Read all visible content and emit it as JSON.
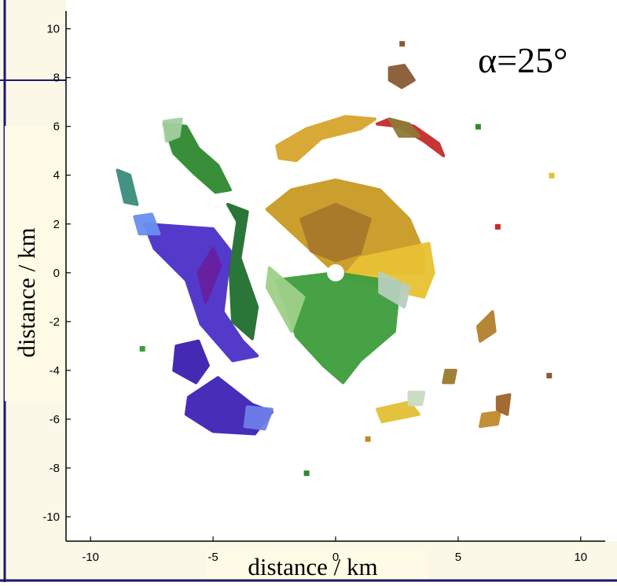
{
  "chart_data": {
    "type": "scatter",
    "title": "",
    "annotation": "α=25°",
    "xlabel": "distance / km",
    "ylabel": "distance  / km",
    "xlim": [
      -11,
      11
    ],
    "ylim": [
      -11,
      10.6
    ],
    "xticks": [
      -10,
      -5,
      0,
      5,
      10
    ],
    "yticks": [
      10,
      8,
      6,
      4,
      2,
      0,
      -2,
      -4,
      -6,
      -8,
      -10
    ],
    "xtick_labels": [
      "-10",
      "-5",
      "0",
      "5",
      "10"
    ],
    "ytick_labels": [
      "10",
      "8",
      "6",
      "4",
      "2",
      "0",
      "-2",
      "-4",
      "-6",
      "-8",
      "-10"
    ],
    "grid": false,
    "regions": [
      {
        "name": "center-ochre",
        "color": "#c99a22",
        "points": [
          [
            -2.8,
            2.6
          ],
          [
            -1.8,
            3.4
          ],
          [
            0,
            3.8
          ],
          [
            1.8,
            3.4
          ],
          [
            3,
            2.2
          ],
          [
            3.6,
            0.8
          ],
          [
            3.6,
            0
          ],
          [
            0,
            0
          ]
        ]
      },
      {
        "name": "center-yellow",
        "color": "#e8c233",
        "points": [
          [
            3.8,
            1.2
          ],
          [
            4,
            0
          ],
          [
            3.6,
            -1
          ],
          [
            0.3,
            -0.2
          ],
          [
            1,
            0.6
          ]
        ]
      },
      {
        "name": "center-brown-core",
        "color": "#a8792a",
        "points": [
          [
            -1.4,
            2.2
          ],
          [
            0,
            2.8
          ],
          [
            1.4,
            2.2
          ],
          [
            1,
            0.8
          ],
          [
            0,
            0.5
          ],
          [
            -1,
            0.9
          ]
        ]
      },
      {
        "name": "center-green-south",
        "color": "#3e9c3c",
        "points": [
          [
            -2.4,
            -0.3
          ],
          [
            0,
            0
          ],
          [
            2.6,
            -0.4
          ],
          [
            2.4,
            -2.4
          ],
          [
            1,
            -3.6
          ],
          [
            0.3,
            -4.5
          ],
          [
            -0.5,
            -3.8
          ],
          [
            -1.6,
            -2.6
          ]
        ]
      },
      {
        "name": "center-lightgreen-edge",
        "color": "#9fd08a",
        "points": [
          [
            -2.7,
            0.2
          ],
          [
            -2.8,
            -0.6
          ],
          [
            -1.8,
            -2.4
          ],
          [
            -1.3,
            -1
          ]
        ]
      },
      {
        "name": "center-pale-grey",
        "color": "#b7cfbd",
        "points": [
          [
            1.8,
            0
          ],
          [
            3,
            -0.6
          ],
          [
            2.8,
            -1.4
          ],
          [
            1.8,
            -0.8
          ]
        ]
      },
      {
        "name": "arc-gold-north",
        "color": "#d6a52c",
        "points": [
          [
            -2.4,
            5.2
          ],
          [
            -1.2,
            5.9
          ],
          [
            0.4,
            6.4
          ],
          [
            1.6,
            6.3
          ],
          [
            1,
            5.9
          ],
          [
            -0.6,
            5.5
          ],
          [
            -1.6,
            4.6
          ],
          [
            -2.3,
            4.7
          ]
        ]
      },
      {
        "name": "arc-red-north",
        "color": "#c72a2a",
        "points": [
          [
            1.7,
            6.1
          ],
          [
            2.6,
            6
          ],
          [
            3.6,
            5.4
          ],
          [
            4.4,
            4.8
          ],
          [
            4.2,
            5.3
          ],
          [
            3.2,
            6
          ],
          [
            2.2,
            6.3
          ]
        ]
      },
      {
        "name": "arc-olive-north",
        "color": "#8f7a36",
        "points": [
          [
            2.2,
            6.3
          ],
          [
            3,
            6.1
          ],
          [
            3.4,
            5.6
          ],
          [
            2.6,
            5.6
          ]
        ]
      },
      {
        "name": "brown-fleck-ne",
        "color": "#8a5a34",
        "points": [
          [
            2.2,
            8.4
          ],
          [
            2.8,
            8.5
          ],
          [
            3.2,
            7.9
          ],
          [
            2.7,
            7.6
          ],
          [
            2.2,
            7.9
          ]
        ]
      },
      {
        "name": "green-plume-nw",
        "color": "#2f8a2f",
        "points": [
          [
            -7,
            6.1
          ],
          [
            -6.1,
            6
          ],
          [
            -5.6,
            5.1
          ],
          [
            -4.8,
            4.4
          ],
          [
            -4.3,
            3.4
          ],
          [
            -4.9,
            3.3
          ],
          [
            -5.8,
            4.1
          ],
          [
            -6.6,
            4.9
          ]
        ]
      },
      {
        "name": "pale-green-nw-tip",
        "color": "#a3cfa0",
        "points": [
          [
            -7,
            6.2
          ],
          [
            -6.3,
            6.3
          ],
          [
            -6.4,
            5.6
          ],
          [
            -6.9,
            5.4
          ]
        ]
      },
      {
        "name": "teal-strip-west",
        "color": "#3c8c7e",
        "points": [
          [
            -8.9,
            4.2
          ],
          [
            -8.4,
            4
          ],
          [
            -8.1,
            2.8
          ],
          [
            -8.6,
            2.9
          ]
        ]
      },
      {
        "name": "dark-green-ridge",
        "color": "#1f6e2e",
        "points": [
          [
            -4.4,
            2.8
          ],
          [
            -4,
            2.1
          ],
          [
            -4.3,
            0
          ],
          [
            -4.2,
            -2
          ],
          [
            -3.4,
            -2.7
          ],
          [
            -3.2,
            -1.4
          ],
          [
            -3.9,
            0.6
          ],
          [
            -3.6,
            2.5
          ]
        ]
      },
      {
        "name": "blue-west-mass",
        "color": "#4a30c8",
        "points": [
          [
            -7.8,
            2
          ],
          [
            -6.4,
            1.9
          ],
          [
            -5,
            1.8
          ],
          [
            -4.3,
            0.9
          ],
          [
            -4.6,
            -1.6
          ],
          [
            -3.8,
            -2.8
          ],
          [
            -3.2,
            -3.4
          ],
          [
            -4.2,
            -3.6
          ],
          [
            -5.5,
            -2.1
          ],
          [
            -6.1,
            -0.3
          ],
          [
            -7.4,
            1
          ]
        ]
      },
      {
        "name": "light-blue-fringe",
        "color": "#6a8ff0",
        "points": [
          [
            -8.2,
            2.3
          ],
          [
            -7.5,
            2.4
          ],
          [
            -7.2,
            1.6
          ],
          [
            -8,
            1.6
          ]
        ]
      },
      {
        "name": "purple-core",
        "color": "#6a1fa0",
        "points": [
          [
            -5,
            1
          ],
          [
            -4.7,
            0.3
          ],
          [
            -5.3,
            -1.2
          ],
          [
            -5.6,
            0
          ]
        ]
      },
      {
        "name": "dark-blue-south-1",
        "color": "#3a1fae",
        "points": [
          [
            -6.5,
            -3
          ],
          [
            -5.6,
            -2.8
          ],
          [
            -5.2,
            -3.8
          ],
          [
            -5.7,
            -4.5
          ],
          [
            -6.6,
            -4
          ]
        ]
      },
      {
        "name": "dark-blue-south-2",
        "color": "#3e22b5",
        "points": [
          [
            -6,
            -5.1
          ],
          [
            -4.8,
            -4.3
          ],
          [
            -3.4,
            -5.4
          ],
          [
            -2.6,
            -5.7
          ],
          [
            -3.3,
            -6.6
          ],
          [
            -5,
            -6.5
          ],
          [
            -6.1,
            -5.8
          ]
        ]
      },
      {
        "name": "periwinkle-south-edge",
        "color": "#6f7fe8",
        "points": [
          [
            -3.6,
            -5.5
          ],
          [
            -2.6,
            -5.6
          ],
          [
            -2.9,
            -6.4
          ],
          [
            -3.7,
            -6.3
          ]
        ]
      },
      {
        "name": "ochre-east-1",
        "color": "#b1802c",
        "points": [
          [
            5.8,
            -2.2
          ],
          [
            6.4,
            -1.6
          ],
          [
            6.5,
            -2.4
          ],
          [
            5.9,
            -2.8
          ]
        ]
      },
      {
        "name": "ochre-east-2",
        "color": "#c08a2c",
        "points": [
          [
            6,
            -5.8
          ],
          [
            6.7,
            -5.7
          ],
          [
            6.6,
            -6.2
          ],
          [
            5.9,
            -6.3
          ]
        ]
      },
      {
        "name": "brown-east-3",
        "color": "#a0632a",
        "points": [
          [
            6.6,
            -5.1
          ],
          [
            7.1,
            -5
          ],
          [
            7,
            -5.8
          ],
          [
            6.6,
            -5.6
          ]
        ]
      },
      {
        "name": "yellow-south-east",
        "color": "#e2c033",
        "points": [
          [
            1.7,
            -5.6
          ],
          [
            3,
            -5.3
          ],
          [
            3.4,
            -5.8
          ],
          [
            1.9,
            -6.1
          ]
        ]
      },
      {
        "name": "olive-small-east",
        "color": "#9a7a2e",
        "points": [
          [
            4.5,
            -4
          ],
          [
            4.9,
            -4
          ],
          [
            4.8,
            -4.5
          ],
          [
            4.4,
            -4.5
          ]
        ]
      },
      {
        "name": "pale-blob-south",
        "color": "#c8dcc0",
        "points": [
          [
            3,
            -4.9
          ],
          [
            3.6,
            -4.9
          ],
          [
            3.5,
            -5.4
          ],
          [
            3,
            -5.4
          ]
        ]
      }
    ],
    "flecks": [
      {
        "name": "fleck-gold-east-north",
        "color": "#e2c033",
        "x": 8.8,
        "y": 4
      },
      {
        "name": "fleck-red-east",
        "color": "#c72a2a",
        "x": 6.6,
        "y": 1.9
      },
      {
        "name": "fleck-brown-east",
        "color": "#8a5a34",
        "x": 8.7,
        "y": -4.2
      },
      {
        "name": "fleck-green-south",
        "color": "#2f8a2f",
        "x": -1.2,
        "y": -8.2
      },
      {
        "name": "fleck-green-northeast",
        "color": "#2f8a2f",
        "x": 5.8,
        "y": 6
      },
      {
        "name": "fleck-ochre-south",
        "color": "#c08a2c",
        "x": 1.3,
        "y": -6.8
      },
      {
        "name": "fleck-green-west",
        "color": "#3e9c3c",
        "x": -7.9,
        "y": -3.1
      },
      {
        "name": "fleck-brown-top",
        "color": "#8a5a34",
        "x": 2.7,
        "y": 9.4
      }
    ],
    "center_hole": {
      "x": 0,
      "y": 0,
      "r_km": 0.35
    }
  }
}
